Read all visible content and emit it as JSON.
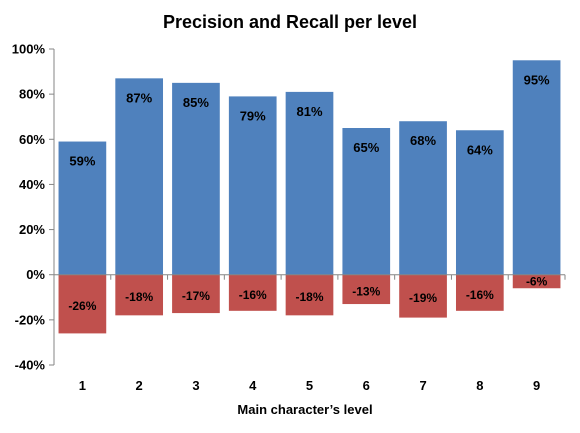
{
  "chart_data": {
    "type": "bar",
    "title": "Precision and Recall per level",
    "xlabel": "Main character’s level",
    "ylabel": "",
    "categories": [
      "1",
      "2",
      "3",
      "4",
      "5",
      "6",
      "7",
      "8",
      "9"
    ],
    "series": [
      {
        "values": [
          59,
          87,
          85,
          79,
          81,
          65,
          68,
          64,
          95
        ],
        "labels": [
          "59%",
          "87%",
          "85%",
          "79%",
          "81%",
          "65%",
          "68%",
          "64%",
          "95%"
        ],
        "color": "#4f81bd"
      },
      {
        "values": [
          -26,
          -18,
          -17,
          -16,
          -18,
          -13,
          -19,
          -16,
          -6
        ],
        "labels": [
          "-26%",
          "-18%",
          "-17%",
          "-16%",
          "-18%",
          "-13%",
          "-19%",
          "-16%",
          "-6%"
        ],
        "color": "#c0504d"
      }
    ],
    "ylim": [
      -40,
      100
    ],
    "yticks": [
      -40,
      -20,
      0,
      20,
      40,
      60,
      80,
      100
    ],
    "ytick_labels": [
      "-40%",
      "-20%",
      "0%",
      "20%",
      "40%",
      "60%",
      "80%",
      "100%"
    ],
    "grid": false,
    "legend": "none",
    "axis_color": "#868686"
  }
}
